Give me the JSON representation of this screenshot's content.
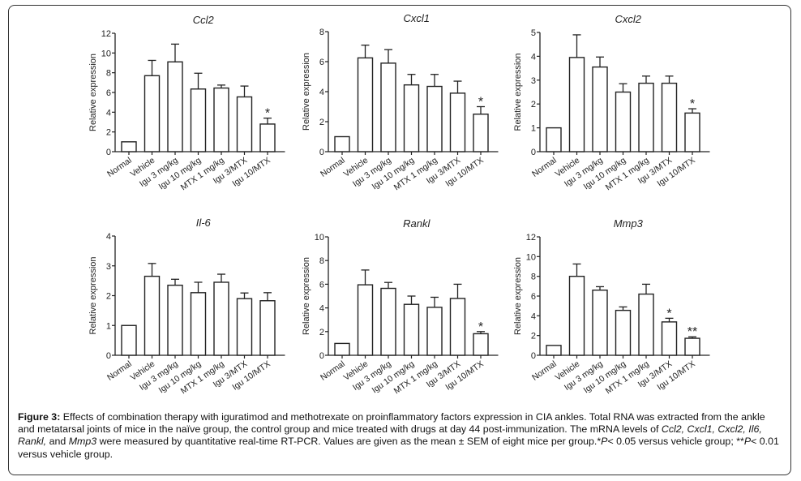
{
  "figure": {
    "label": "Figure 3:",
    "caption_parts": [
      {
        "t": " Effects of combination therapy with iguratimod and methotrexate on proinflammatory factors expression in CIA ankles. Total RNA was extracted from the ankle and metatarsal joints of mice in the naïve group, the control group and mice treated with drugs at day 44 post-immunization. The mRNA levels of ",
        "i": false
      },
      {
        "t": "Ccl2, Cxcl1, Cxcl2, Il6, Rankl,",
        "i": true
      },
      {
        "t": " and ",
        "i": false
      },
      {
        "t": "Mmp3",
        "i": true
      },
      {
        "t": " were measured by quantitative real-time RT-PCR. Values are given as the mean ± SEM of eight mice per group.*",
        "i": false
      },
      {
        "t": "P",
        "i": true
      },
      {
        "t": "< 0.05 versus vehicle group; **",
        "i": false
      },
      {
        "t": "P",
        "i": true
      },
      {
        "t": "< 0.01 versus vehicle group.",
        "i": false
      }
    ]
  },
  "chart_data": [
    {
      "type": "bar",
      "title": "Ccl2",
      "ylabel": "Relative expression",
      "xlabel": "",
      "ylim": [
        0,
        12
      ],
      "yticks": [
        0,
        2,
        4,
        6,
        8,
        10,
        12
      ],
      "categories": [
        "Normal",
        "Vehicle",
        "Igu 3 mg/kg",
        "Igu 10 mg/kg",
        "MTX 1 mg/kg",
        "Igu 3/MTX",
        "Igu 10/MTX"
      ],
      "values": [
        1.0,
        7.7,
        9.1,
        6.35,
        6.45,
        5.55,
        2.8
      ],
      "errors": [
        0,
        1.55,
        1.8,
        1.6,
        0.3,
        1.1,
        0.6
      ],
      "significance": [
        "",
        "",
        "",
        "",
        "",
        "",
        "*"
      ]
    },
    {
      "type": "bar",
      "title": "Cxcl1",
      "ylabel": "Relative expression",
      "xlabel": "",
      "ylim": [
        0,
        8
      ],
      "yticks": [
        0,
        2,
        4,
        6,
        8
      ],
      "categories": [
        "Normal",
        "Vehicle",
        "Igu 3 mg/kg",
        "Igu 10 mg/kg",
        "MTX 1 mg/kg",
        "Igu 3/MTX",
        "Igu 10/MTX"
      ],
      "values": [
        1.0,
        6.25,
        5.9,
        4.45,
        4.35,
        3.9,
        2.5
      ],
      "errors": [
        0,
        0.85,
        0.9,
        0.7,
        0.8,
        0.8,
        0.5
      ],
      "significance": [
        "",
        "",
        "",
        "",
        "",
        "",
        "*"
      ]
    },
    {
      "type": "bar",
      "title": "Cxcl2",
      "ylabel": "Relative expression",
      "xlabel": "",
      "ylim": [
        0,
        5
      ],
      "yticks": [
        0,
        1,
        2,
        3,
        4,
        5
      ],
      "categories": [
        "Normal",
        "Vehicle",
        "Igu 3 mg/kg",
        "Igu 10 mg/kg",
        "MTX 1 mg/kg",
        "Igu 3/MTX",
        "Igu 10/MTX"
      ],
      "values": [
        1.0,
        3.95,
        3.55,
        2.5,
        2.87,
        2.87,
        1.62
      ],
      "errors": [
        0,
        0.95,
        0.42,
        0.35,
        0.3,
        0.3,
        0.18
      ],
      "significance": [
        "",
        "",
        "",
        "",
        "",
        "",
        "*"
      ]
    },
    {
      "type": "bar",
      "title": "Il-6",
      "ylabel": "Relative expression",
      "xlabel": "",
      "ylim": [
        0,
        4
      ],
      "yticks": [
        0,
        1,
        2,
        3,
        4
      ],
      "categories": [
        "Normal",
        "Vehicle",
        "Igu 3 mg/kg",
        "Igu 10 mg/kg",
        "MTX 1 mg/kg",
        "Igu 3/MTX",
        "Igu 10/MTX"
      ],
      "values": [
        1.0,
        2.65,
        2.35,
        2.1,
        2.45,
        1.9,
        1.83
      ],
      "errors": [
        0,
        0.43,
        0.2,
        0.35,
        0.27,
        0.19,
        0.27
      ],
      "significance": [
        "",
        "",
        "",
        "",
        "",
        "",
        ""
      ]
    },
    {
      "type": "bar",
      "title": "Rankl",
      "ylabel": "Relative expression",
      "xlabel": "",
      "ylim": [
        0,
        10
      ],
      "yticks": [
        0,
        2,
        4,
        6,
        8,
        10
      ],
      "categories": [
        "Normal",
        "Vehicle",
        "Igu 3 mg/kg",
        "Igu 10 mg/kg",
        "MTX 1 mg/kg",
        "Igu 3/MTX",
        "Igu 10/MTX"
      ],
      "values": [
        1.0,
        5.95,
        5.65,
        4.3,
        4.05,
        4.8,
        1.82
      ],
      "errors": [
        0,
        1.25,
        0.5,
        0.7,
        0.85,
        1.2,
        0.18
      ],
      "significance": [
        "",
        "",
        "",
        "",
        "",
        "",
        "*"
      ]
    },
    {
      "type": "bar",
      "title": "Mmp3",
      "ylabel": "Relative expression",
      "xlabel": "",
      "ylim": [
        0,
        12
      ],
      "yticks": [
        0,
        2,
        4,
        6,
        8,
        10,
        12
      ],
      "categories": [
        "Normal",
        "Vehicle",
        "Igu 3 mg/kg",
        "Igu 10 mg/kg",
        "MTX 1 mg/kg",
        "Igu 3/MTX",
        "Igu 10/MTX"
      ],
      "values": [
        1.0,
        8.0,
        6.6,
        4.55,
        6.2,
        3.38,
        1.72
      ],
      "errors": [
        0,
        1.25,
        0.35,
        0.35,
        1.0,
        0.37,
        0.15
      ],
      "significance": [
        "",
        "",
        "",
        "",
        "",
        "*",
        "**"
      ]
    }
  ]
}
